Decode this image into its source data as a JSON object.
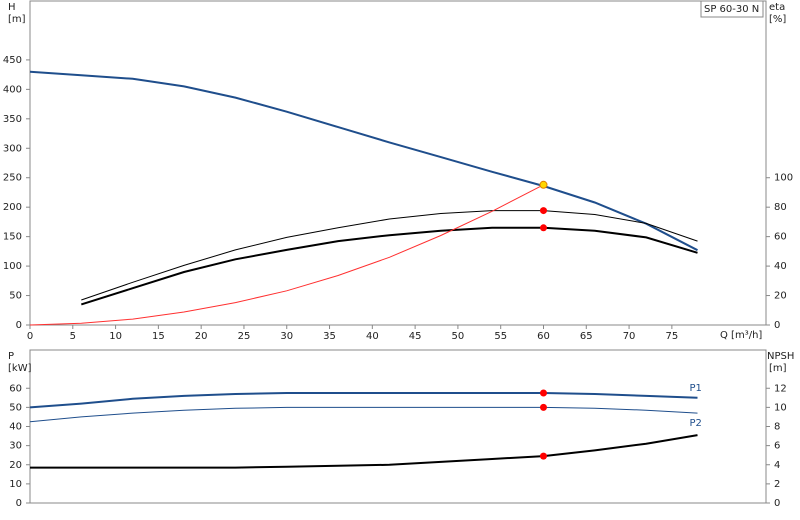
{
  "chart_data": [
    {
      "type": "line",
      "title": "SP 60-30 N",
      "y_label": "H",
      "y_unit": "[m]",
      "y2_label": "eta",
      "y2_unit": "[%]",
      "x_label": "Q [m³/h]",
      "x": [
        0,
        6,
        12,
        18,
        24,
        30,
        36,
        42,
        48,
        54,
        60,
        66,
        72,
        78
      ],
      "xlim": [
        0,
        86
      ],
      "xticks": [
        0,
        5,
        10,
        15,
        20,
        25,
        30,
        35,
        40,
        45,
        50,
        55,
        60,
        65,
        70,
        75
      ],
      "ylim": [
        0,
        550
      ],
      "yticks": [
        0,
        50,
        100,
        150,
        200,
        250,
        300,
        350,
        400,
        450
      ],
      "y2lim": [
        0,
        220
      ],
      "y2ticks": [
        0,
        20,
        40,
        60,
        80,
        100
      ],
      "series": [
        {
          "color": "#1f4e8c",
          "width": 2,
          "values": [
            430,
            424,
            418,
            405,
            386,
            362,
            336,
            310,
            285,
            260,
            236,
            208,
            172,
            127
          ]
        },
        {
          "color": "#000000",
          "width": 1,
          "axis": "y2",
          "values": [
            null,
            17,
            29,
            40.5,
            51,
            59.5,
            66,
            72,
            75.7,
            77.7,
            77.7,
            75,
            69,
            57
          ]
        },
        {
          "color": "#000000",
          "width": 2,
          "axis": "y2",
          "values": [
            null,
            14,
            25,
            36,
            44.6,
            51,
            57,
            61,
            64,
            66,
            66,
            64,
            59.5,
            49
          ]
        },
        {
          "color": "#ff3030",
          "width": 1,
          "values": [
            0,
            3,
            10,
            22,
            38,
            58,
            84,
            115,
            152,
            193,
            238,
            null,
            null,
            null
          ]
        },
        {
          "style": "point",
          "color": "#ffd700",
          "values": [
            null,
            null,
            null,
            null,
            null,
            null,
            null,
            null,
            null,
            null,
            238,
            null,
            null,
            null
          ]
        },
        {
          "style": "point",
          "color": "#ff0000",
          "axis": "y2",
          "values": [
            null,
            null,
            null,
            null,
            null,
            null,
            null,
            null,
            null,
            null,
            77.7,
            null,
            null,
            null
          ]
        },
        {
          "style": "point",
          "color": "#ff0000",
          "axis": "y2",
          "values": [
            null,
            null,
            null,
            null,
            null,
            null,
            null,
            null,
            null,
            null,
            66,
            null,
            null,
            null
          ]
        }
      ]
    },
    {
      "type": "line",
      "y_label": "P",
      "y_unit": "[kW]",
      "y2_label": "NPSH",
      "y2_unit": "[m]",
      "x": [
        0,
        6,
        12,
        18,
        24,
        30,
        36,
        42,
        48,
        54,
        60,
        66,
        72,
        78
      ],
      "xlim": [
        0,
        86
      ],
      "ylim": [
        0,
        80
      ],
      "yticks": [
        0,
        10,
        20,
        30,
        40,
        50,
        60
      ],
      "y2lim": [
        0,
        16
      ],
      "y2ticks": [
        0,
        2,
        4,
        6,
        8,
        10,
        12
      ],
      "series": [
        {
          "name": "P1",
          "color": "#1f4e8c",
          "width": 2,
          "values": [
            50,
            52,
            54.5,
            56,
            57,
            57.5,
            57.5,
            57.5,
            57.5,
            57.5,
            57.5,
            57,
            56,
            55
          ]
        },
        {
          "name": "P2",
          "color": "#1f4e8c",
          "width": 1,
          "values": [
            42.5,
            45,
            47,
            48.5,
            49.5,
            50,
            50,
            50,
            50,
            50,
            50,
            49.5,
            48.5,
            47
          ]
        },
        {
          "color": "#000000",
          "width": 2,
          "axis": "y2",
          "values": [
            3.7,
            3.7,
            3.7,
            3.7,
            3.7,
            3.8,
            3.9,
            4.0,
            4.3,
            4.6,
            4.9,
            5.5,
            6.2,
            7.1
          ]
        },
        {
          "style": "point",
          "color": "#ff0000",
          "values": [
            null,
            null,
            null,
            null,
            null,
            null,
            null,
            null,
            null,
            null,
            57.5,
            null,
            null,
            null
          ]
        },
        {
          "style": "point",
          "color": "#ff0000",
          "values": [
            null,
            null,
            null,
            null,
            null,
            null,
            null,
            null,
            null,
            null,
            50,
            null,
            null,
            null
          ]
        },
        {
          "style": "point",
          "color": "#ff0000",
          "axis": "y2",
          "values": [
            null,
            null,
            null,
            null,
            null,
            null,
            null,
            null,
            null,
            null,
            4.9,
            null,
            null,
            null
          ]
        }
      ]
    }
  ]
}
